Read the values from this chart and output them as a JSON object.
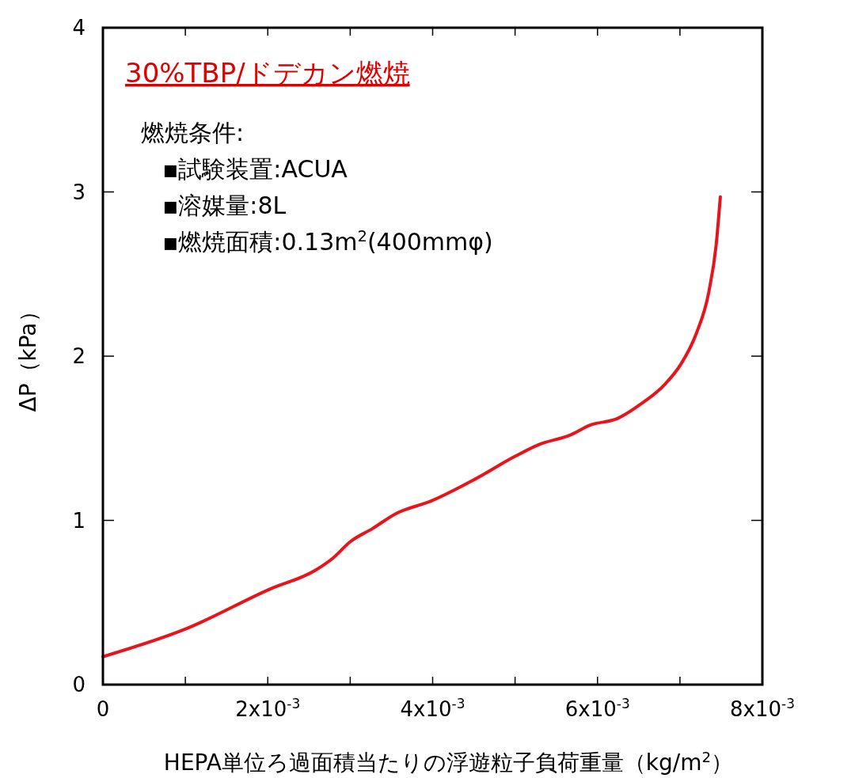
{
  "chart_data": {
    "type": "line",
    "title": "30%TBP/ドデカン燃焼",
    "xlabel": "HEPA単位ろ過面積当たりの浮遊粒子負荷重量（kg/m$^{2}$）",
    "ylabel": "ΔP（kPa）",
    "annotations": [
      "燃焼条件:",
      "▪試験装置:ACUA",
      "▪溶媒量:8L",
      "▪燃焼面積:0.13m$^{2}$(400mmφ)"
    ],
    "xlim": [
      0,
      0.008
    ],
    "ylim": [
      0,
      4
    ],
    "xticks": [
      {
        "value": 0,
        "label": "0"
      },
      {
        "value": 0.001,
        "label": null
      },
      {
        "value": 0.002,
        "label": "2x10$^{-3}$"
      },
      {
        "value": 0.003,
        "label": null
      },
      {
        "value": 0.004,
        "label": "4x10$^{-3}$"
      },
      {
        "value": 0.005,
        "label": null
      },
      {
        "value": 0.006,
        "label": "6x10$^{-3}$"
      },
      {
        "value": 0.007,
        "label": null
      },
      {
        "value": 0.008,
        "label": "8x10$^{-3}$"
      }
    ],
    "yticks": [
      0,
      1,
      2,
      3,
      4
    ],
    "grid": false,
    "marker": "none",
    "line_style": "solid",
    "series": [
      {
        "color": "#e8141c",
        "x": [
          0,
          0.00101,
          0.00202,
          0.00259,
          0.00279,
          0.003,
          0.00327,
          0.00355,
          0.00399,
          0.00451,
          0.005,
          0.00528,
          0.00567,
          0.00591,
          0.00624,
          0.00653,
          0.00682,
          0.00701,
          0.0072,
          0.00735,
          0.00744,
          0.00749
        ],
        "values": [
          0.17,
          0.34,
          0.58,
          0.7,
          0.77,
          0.87,
          0.95,
          1.04,
          1.12,
          1.25,
          1.39,
          1.46,
          1.52,
          1.58,
          1.62,
          1.71,
          1.83,
          1.95,
          2.14,
          2.39,
          2.68,
          2.97
        ]
      }
    ]
  }
}
